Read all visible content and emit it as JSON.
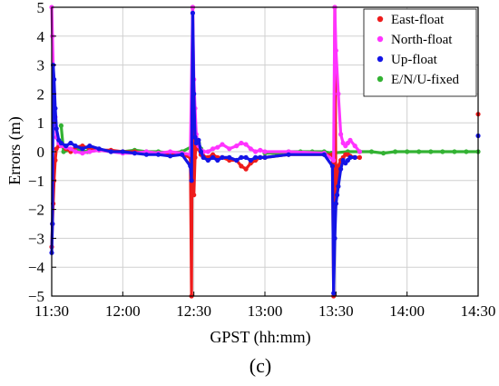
{
  "caption": "(c)",
  "chart_data": {
    "type": "scatter",
    "title": "",
    "xlabel": "GPST (hh:mm)",
    "ylabel": "Errors (m)",
    "xlim": [
      0,
      180
    ],
    "ylim": [
      -5,
      5
    ],
    "x_ticks": [
      {
        "value": 0,
        "label": "11:30"
      },
      {
        "value": 30,
        "label": "12:00"
      },
      {
        "value": 60,
        "label": "12:30"
      },
      {
        "value": 90,
        "label": "13:00"
      },
      {
        "value": 120,
        "label": "13:30"
      },
      {
        "value": 150,
        "label": "14:00"
      },
      {
        "value": 180,
        "label": "14:30"
      }
    ],
    "y_ticks": [
      {
        "value": 5,
        "label": "5"
      },
      {
        "value": 4,
        "label": "4"
      },
      {
        "value": 3,
        "label": "3"
      },
      {
        "value": 2,
        "label": "2"
      },
      {
        "value": 1,
        "label": "1"
      },
      {
        "value": 0,
        "label": "0"
      },
      {
        "value": -1,
        "label": "−1"
      },
      {
        "value": -2,
        "label": "−2"
      },
      {
        "value": -3,
        "label": "−3"
      },
      {
        "value": -4,
        "label": "−4"
      },
      {
        "value": -5,
        "label": "−5"
      }
    ],
    "grid": true,
    "legend_position": "top-right",
    "series": [
      {
        "name": "East-float",
        "color": "#ee1c1c",
        "x": [
          0.0,
          0.3,
          0.6,
          1.0,
          1.5,
          2,
          3,
          4,
          6,
          8,
          10,
          13,
          16,
          20,
          25,
          30,
          35,
          40,
          45,
          50,
          55,
          58.5,
          59.0,
          59.5,
          60.0,
          60.5,
          61,
          62,
          63,
          64,
          66,
          68,
          70,
          72,
          75,
          78,
          80,
          82,
          84,
          86,
          88,
          90,
          100,
          115,
          118.5,
          119.0,
          119.5,
          120.0,
          120.5,
          121,
          122,
          123,
          124,
          125,
          126,
          128,
          130
        ],
        "y": [
          -3.3,
          -2.5,
          -1.8,
          -1.0,
          -0.3,
          0.1,
          0.2,
          0.25,
          0.1,
          0.0,
          0.15,
          0.2,
          0.1,
          0.05,
          0.05,
          0.0,
          0.0,
          -0.05,
          -0.05,
          -0.05,
          -0.1,
          -0.2,
          -5.0,
          5.0,
          -1.5,
          -0.2,
          0.3,
          0.1,
          -0.1,
          -0.15,
          -0.2,
          -0.1,
          -0.2,
          -0.2,
          -0.3,
          -0.3,
          -0.5,
          -0.6,
          -0.4,
          -0.3,
          -0.2,
          -0.2,
          -0.1,
          -0.1,
          -0.1,
          -5.0,
          5.0,
          -1.8,
          -1.0,
          -0.5,
          -0.3,
          -0.2,
          -0.1,
          -0.1,
          -0.15,
          -0.2,
          -0.2
        ]
      },
      {
        "name": "North-float",
        "color": "#ff33ff",
        "x": [
          0.0,
          0.3,
          0.6,
          1.0,
          1.5,
          2,
          3,
          4,
          6,
          8,
          10,
          13,
          16,
          20,
          25,
          30,
          35,
          40,
          45,
          50,
          55,
          58.5,
          59.5,
          60.0,
          60.5,
          61,
          62,
          63,
          64,
          66,
          68,
          70,
          72,
          75,
          78,
          80,
          82,
          84,
          86,
          88,
          90,
          100,
          115,
          119.0,
          119.5,
          120.0,
          121,
          122,
          123,
          124,
          125,
          126,
          128,
          130
        ],
        "y": [
          5.0,
          4.0,
          3.0,
          2.0,
          1.2,
          0.5,
          0.3,
          0.2,
          0.15,
          0.1,
          0.0,
          -0.05,
          0.0,
          0.05,
          0.0,
          -0.05,
          -0.05,
          0.0,
          -0.05,
          0.0,
          -0.05,
          -0.1,
          5.0,
          2.5,
          1.5,
          0.6,
          0.2,
          0.05,
          0.0,
          0.0,
          0.1,
          0.15,
          0.25,
          0.1,
          0.2,
          0.3,
          0.25,
          0.1,
          0.0,
          0.05,
          0.0,
          0.0,
          -0.05,
          -0.3,
          5.0,
          3.5,
          2.0,
          0.6,
          0.3,
          0.2,
          0.3,
          0.4,
          0.2,
          0.0
        ]
      },
      {
        "name": "Up-float",
        "color": "#1414e6",
        "x": [
          0.0,
          0.3,
          0.6,
          1.0,
          1.5,
          2,
          3,
          4,
          6,
          8,
          10,
          13,
          16,
          20,
          25,
          30,
          35,
          40,
          45,
          50,
          55,
          58.5,
          59.0,
          59.5,
          60.0,
          60.5,
          61,
          62,
          63,
          64,
          66,
          68,
          70,
          72,
          75,
          78,
          80,
          82,
          84,
          86,
          88,
          90,
          100,
          115,
          118.5,
          119.0,
          119.5,
          120.0,
          120.5,
          121,
          122,
          123,
          124,
          125,
          126,
          128,
          180
        ],
        "y": [
          -3.5,
          -2.5,
          3.0,
          2.5,
          1.5,
          0.8,
          0.4,
          0.3,
          0.2,
          0.3,
          0.2,
          0.1,
          0.2,
          0.1,
          0.0,
          0.0,
          -0.05,
          -0.1,
          -0.1,
          -0.15,
          -0.1,
          -0.5,
          -1.0,
          4.8,
          2.0,
          0.5,
          0.3,
          0.4,
          0.0,
          -0.2,
          -0.3,
          -0.2,
          -0.3,
          -0.2,
          -0.2,
          -0.3,
          -0.2,
          -0.2,
          -0.3,
          -0.2,
          -0.2,
          -0.2,
          -0.1,
          -0.1,
          -0.5,
          -4.9,
          -3.0,
          -1.8,
          -1.5,
          -1.2,
          -0.6,
          -0.3,
          -0.4,
          -0.3,
          -0.2,
          -0.2,
          0.55
        ]
      },
      {
        "name": "E/N/U-fixed",
        "color": "#33b233",
        "x": [
          4,
          5,
          10,
          15,
          20,
          25,
          30,
          35,
          40,
          45,
          50,
          55,
          62,
          63,
          64,
          90,
          95,
          100,
          105,
          110,
          115,
          118,
          125,
          130,
          135,
          140,
          145,
          150,
          155,
          160,
          165,
          170,
          175,
          180
        ],
        "y": [
          0.9,
          0.0,
          0.1,
          0.0,
          0.05,
          0.0,
          0.0,
          0.05,
          0.0,
          0.0,
          -0.05,
          0.0,
          0.3,
          0.1,
          0.0,
          -0.05,
          -0.05,
          0.0,
          0.0,
          0.0,
          0.0,
          -0.05,
          0.0,
          0.0,
          0.0,
          -0.05,
          0.0,
          0.0,
          0.0,
          0.0,
          0.0,
          0.0,
          0.0,
          0.0
        ]
      },
      {
        "name": "",
        "color": "#ee1c1c",
        "x": [
          180
        ],
        "y": [
          1.3
        ]
      }
    ]
  }
}
